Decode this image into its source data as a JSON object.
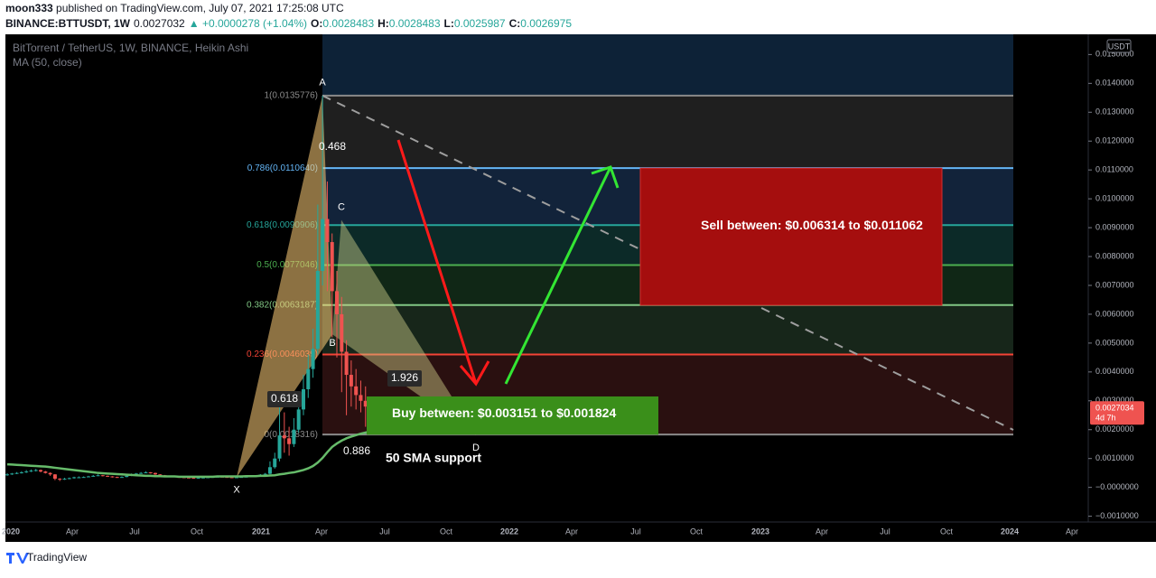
{
  "header": {
    "author": "moon333",
    "published": " published on TradingView.com, July 07, 2021 17:25:08 UTC",
    "symbol": "BINANCE:BTTUSDT, 1W",
    "last": "0.0027032",
    "change": "▲ +0.0000278 (+1.04%)",
    "ohlc": [
      {
        "label": "O:",
        "value": "0.0028483"
      },
      {
        "label": "H:",
        "value": "0.0028483"
      },
      {
        "label": "L:",
        "value": "0.0025987"
      },
      {
        "label": "C:",
        "value": "0.0026975"
      }
    ]
  },
  "legend": {
    "title": "BitTorrent / TetherUS, 1W, BINANCE, Heikin Ashi",
    "indicator": "MA (50, close)"
  },
  "currency": "USDT",
  "price_axis": {
    "ylim": [
      -0.0012,
      0.0157
    ],
    "ticks": [
      {
        "value": -0.001,
        "label": "−0.0010000"
      },
      {
        "value": 0,
        "label": "−0.0000000"
      },
      {
        "value": 0.001,
        "label": "0.0010000"
      },
      {
        "value": 0.002,
        "label": "0.0020000"
      },
      {
        "value": 0.003,
        "label": "0.0030000"
      },
      {
        "value": 0.004,
        "label": "0.0040000"
      },
      {
        "value": 0.005,
        "label": "0.0050000"
      },
      {
        "value": 0.006,
        "label": "0.0060000"
      },
      {
        "value": 0.007,
        "label": "0.0070000"
      },
      {
        "value": 0.008,
        "label": "0.0080000"
      },
      {
        "value": 0.009,
        "label": "0.0090000"
      },
      {
        "value": 0.01,
        "label": "0.0100000"
      },
      {
        "value": 0.011,
        "label": "0.0110000"
      },
      {
        "value": 0.012,
        "label": "0.0120000"
      },
      {
        "value": 0.013,
        "label": "0.0130000"
      },
      {
        "value": 0.014,
        "label": "0.0140000"
      },
      {
        "value": 0.015,
        "label": "0.0150000"
      }
    ],
    "current": {
      "value": 0.0027034,
      "label": "0.0027034",
      "countdown": "4d 7h"
    }
  },
  "time_axis": [
    "2020",
    "Apr",
    "Jul",
    "Oct",
    "2021",
    "Apr",
    "Jul",
    "Oct",
    "2022",
    "Apr",
    "Jul",
    "Oct",
    "2023",
    "Apr",
    "Jul",
    "Oct",
    "2024",
    "Apr"
  ],
  "candles": [
    [
      0.00044,
      0.00049,
      0.0004,
      0.00045
    ],
    [
      0.00045,
      0.0005,
      0.00043,
      0.00048
    ],
    [
      0.00048,
      0.00053,
      0.00046,
      0.0005
    ],
    [
      0.0005,
      0.00056,
      0.00048,
      0.00052
    ],
    [
      0.00052,
      0.0006,
      0.0005,
      0.00055
    ],
    [
      0.00055,
      0.00062,
      0.00053,
      0.00058
    ],
    [
      0.00058,
      0.00064,
      0.00055,
      0.0006
    ],
    [
      0.0006,
      0.00062,
      0.00052,
      0.00055
    ],
    [
      0.00055,
      0.00057,
      0.00048,
      0.0005
    ],
    [
      0.0005,
      0.00052,
      0.0004,
      0.00045
    ],
    [
      0.00045,
      0.00046,
      0.00025,
      0.0003
    ],
    [
      0.0003,
      0.00032,
      0.00022,
      0.00028
    ],
    [
      0.00028,
      0.00033,
      0.00026,
      0.0003
    ],
    [
      0.0003,
      0.00034,
      0.00028,
      0.00032
    ],
    [
      0.00032,
      0.00037,
      0.0003,
      0.00035
    ],
    [
      0.00035,
      0.00038,
      0.00033,
      0.00035
    ],
    [
      0.00035,
      0.00038,
      0.00034,
      0.00036
    ],
    [
      0.00036,
      0.0004,
      0.00035,
      0.00038
    ],
    [
      0.00038,
      0.00043,
      0.00037,
      0.0004
    ],
    [
      0.0004,
      0.00045,
      0.00039,
      0.00042
    ],
    [
      0.00042,
      0.00043,
      0.00038,
      0.0004
    ],
    [
      0.0004,
      0.00041,
      0.00036,
      0.00038
    ],
    [
      0.00038,
      0.00039,
      0.00034,
      0.00036
    ],
    [
      0.00036,
      0.00037,
      0.00033,
      0.00035
    ],
    [
      0.00035,
      0.00038,
      0.00034,
      0.00036
    ],
    [
      0.00036,
      0.00042,
      0.00035,
      0.0004
    ],
    [
      0.0004,
      0.00048,
      0.00039,
      0.00045
    ],
    [
      0.00045,
      0.0005,
      0.00044,
      0.00048
    ],
    [
      0.00048,
      0.00053,
      0.00047,
      0.0005
    ],
    [
      0.0005,
      0.00056,
      0.00049,
      0.00052
    ],
    [
      0.00052,
      0.00053,
      0.00048,
      0.0005
    ],
    [
      0.0005,
      0.00051,
      0.00043,
      0.00045
    ],
    [
      0.00045,
      0.00046,
      0.0004,
      0.00042
    ],
    [
      0.00042,
      0.00043,
      0.00038,
      0.0004
    ],
    [
      0.0004,
      0.00041,
      0.00036,
      0.00038
    ],
    [
      0.00038,
      0.00039,
      0.00035,
      0.00036
    ],
    [
      0.00036,
      0.00037,
      0.00034,
      0.00035
    ],
    [
      0.00035,
      0.00036,
      0.00033,
      0.00034
    ],
    [
      0.00034,
      0.00035,
      0.00032,
      0.00033
    ],
    [
      0.00033,
      0.00034,
      0.00031,
      0.00032
    ],
    [
      0.00032,
      0.00034,
      0.00031,
      0.00033
    ],
    [
      0.00033,
      0.00035,
      0.00032,
      0.00034
    ],
    [
      0.00034,
      0.00036,
      0.00033,
      0.00035
    ],
    [
      0.00035,
      0.00037,
      0.00034,
      0.00036
    ],
    [
      0.00036,
      0.00038,
      0.00035,
      0.00037
    ],
    [
      0.00037,
      0.00038,
      0.00035,
      0.00036
    ],
    [
      0.00036,
      0.00037,
      0.00034,
      0.00035
    ],
    [
      0.00035,
      0.00036,
      0.00033,
      0.00034
    ],
    [
      0.00034,
      0.00036,
      0.00033,
      0.00035
    ],
    [
      0.00035,
      0.00037,
      0.00034,
      0.00036
    ],
    [
      0.00036,
      0.00038,
      0.00035,
      0.00037
    ],
    [
      0.00037,
      0.00039,
      0.00036,
      0.00038
    ],
    [
      0.00038,
      0.00042,
      0.00036,
      0.0004
    ],
    [
      0.0004,
      0.00046,
      0.00039,
      0.00044
    ],
    [
      0.00044,
      0.0005,
      0.00042,
      0.00047
    ],
    [
      0.00047,
      0.0009,
      0.00045,
      0.0007
    ],
    [
      0.0007,
      0.0012,
      0.00065,
      0.001
    ],
    [
      0.001,
      0.0028,
      0.0009,
      0.0018
    ],
    [
      0.0018,
      0.0026,
      0.0012,
      0.0017
    ],
    [
      0.0017,
      0.0021,
      0.0011,
      0.0015
    ],
    [
      0.0015,
      0.0024,
      0.0014,
      0.002
    ],
    [
      0.002,
      0.0032,
      0.0019,
      0.0027
    ],
    [
      0.0027,
      0.0039,
      0.0025,
      0.0034
    ],
    [
      0.0034,
      0.0046,
      0.0031,
      0.0041
    ],
    [
      0.0041,
      0.0055,
      0.0038,
      0.0048
    ],
    [
      0.0048,
      0.0098,
      0.0046,
      0.0075
    ],
    [
      0.0075,
      0.0135776,
      0.007,
      0.0093
    ],
    [
      0.0093,
      0.0106,
      0.0068,
      0.0085
    ],
    [
      0.0085,
      0.0088,
      0.0052,
      0.0068
    ],
    [
      0.0068,
      0.0075,
      0.0045,
      0.006
    ],
    [
      0.006,
      0.0066,
      0.0033,
      0.0047
    ],
    [
      0.0047,
      0.0051,
      0.0025,
      0.0039
    ],
    [
      0.0039,
      0.0044,
      0.0028,
      0.0035
    ],
    [
      0.0035,
      0.0041,
      0.0027,
      0.0032
    ],
    [
      0.0032,
      0.0037,
      0.0026,
      0.003
    ],
    [
      0.003,
      0.0035,
      0.0021,
      0.0028
    ],
    [
      0.0028,
      0.0031,
      0.0024,
      0.0027
    ],
    [
      0.0027,
      0.0029,
      0.0025,
      0.0027
    ],
    [
      0.0028483,
      0.0028483,
      0.0025987,
      0.0026975
    ]
  ],
  "ma": [
    0.0008,
    0.00079,
    0.00078,
    0.00077,
    0.00076,
    0.00075,
    0.00074,
    0.00073,
    0.00072,
    0.0007,
    0.00068,
    0.00066,
    0.00064,
    0.00062,
    0.0006,
    0.00058,
    0.00056,
    0.00054,
    0.00052,
    0.0005,
    0.00049,
    0.00048,
    0.00047,
    0.00046,
    0.00045,
    0.00044,
    0.00043,
    0.00042,
    0.00041,
    0.0004,
    0.0004,
    0.00039,
    0.00039,
    0.00038,
    0.00038,
    0.00038,
    0.00037,
    0.00037,
    0.00037,
    0.00037,
    0.00037,
    0.00037,
    0.00037,
    0.00037,
    0.00038,
    0.00038,
    0.00038,
    0.00038,
    0.00038,
    0.00038,
    0.00039,
    0.00039,
    0.00039,
    0.0004,
    0.0004,
    0.00041,
    0.00042,
    0.00045,
    0.00047,
    0.0005,
    0.00052,
    0.00056,
    0.0006,
    0.00066,
    0.00074,
    0.00086,
    0.00102,
    0.00122,
    0.0014,
    0.00152,
    0.00162,
    0.0017,
    0.00176,
    0.00181,
    0.00186,
    0.0019,
    0.00194,
    0.00198,
    0.00202
  ],
  "fib_levels": [
    {
      "label": "1(0.0135776)",
      "price": 0.0135776,
      "color": "#8a8a8a"
    },
    {
      "label": "0.786(0.0110640)",
      "price": 0.011064,
      "color": "#64b5f6"
    },
    {
      "label": "0.618(0.0090906)",
      "price": 0.0090906,
      "color": "#26a69a"
    },
    {
      "label": "0.5(0.0077046)",
      "price": 0.0077046,
      "color": "#4caf50"
    },
    {
      "label": "0.382(0.0063187)",
      "price": 0.0063187,
      "color": "#81c784"
    },
    {
      "label": "0.236(0.0046039)",
      "price": 0.0046039,
      "color": "#f44336"
    },
    {
      "label": "0(0.0018316)",
      "price": 0.0018316,
      "color": "#8a8a8a"
    }
  ],
  "pattern": [
    {
      "label": "X",
      "price": 0.00035
    },
    {
      "label": "A",
      "price": 0.0135776
    },
    {
      "label": "B",
      "price": 0.0053
    },
    {
      "label": "C",
      "price": 0.00927
    },
    {
      "label": "D",
      "price": 0.0018
    }
  ],
  "ratios": [
    "0.618",
    "0.468",
    "1.926",
    "0.886"
  ],
  "sell_zone": {
    "label": "Sell between: $0.006314 to $0.011062",
    "low": 0.006314,
    "high": 0.011062
  },
  "buy_zone": {
    "label": "Buy between: $0.003151 to $0.001824",
    "low": 0.001824,
    "high": 0.003151
  },
  "note": "50 SMA support",
  "footer": "TradingView"
}
